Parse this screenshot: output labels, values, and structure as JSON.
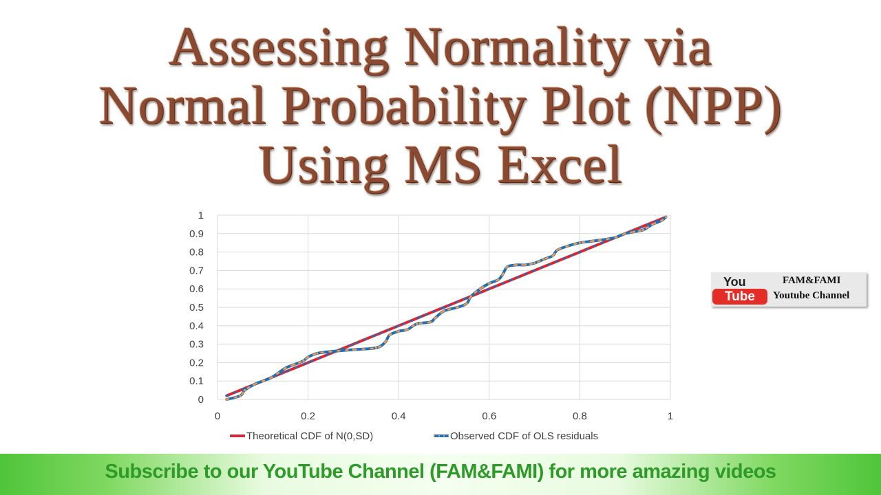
{
  "title_lines": [
    "Assessing Normality via",
    "Normal Probability Plot (NPP)",
    "Using MS Excel"
  ],
  "badge": {
    "you": "You",
    "tube": "Tube",
    "name": "FAM&FAMI",
    "channel": "Youtube Channel"
  },
  "banner": {
    "text": "Subscribe to our YouTube Channel (FAM&FAMI) for more amazing videos"
  },
  "colors": {
    "theoretical": "#e8202a",
    "observed": "#1f6fb4",
    "marker": "#ed9a52",
    "title": "#8a4a32",
    "banner_text": "#2e9b28"
  },
  "chart_data": {
    "type": "line",
    "title": "",
    "xlabel": "",
    "ylabel": "",
    "xlim": [
      0,
      1
    ],
    "ylim": [
      0,
      1
    ],
    "x_ticks": [
      "0",
      "0.2",
      "0.4",
      "0.6",
      "0.8",
      "1"
    ],
    "y_ticks": [
      "0",
      "0.1",
      "0.2",
      "0.3",
      "0.4",
      "0.5",
      "0.6",
      "0.7",
      "0.8",
      "0.9",
      "1"
    ],
    "grid": true,
    "legend_position": "bottom",
    "series": [
      {
        "name": "Theoretical CDF of N(0,SD)",
        "x": [
          0.02,
          0.06,
          0.1,
          0.15,
          0.2,
          0.25,
          0.3,
          0.35,
          0.4,
          0.45,
          0.5,
          0.55,
          0.6,
          0.65,
          0.7,
          0.75,
          0.8,
          0.85,
          0.9,
          0.95,
          0.99
        ],
        "y": [
          0.02,
          0.06,
          0.1,
          0.15,
          0.2,
          0.25,
          0.3,
          0.35,
          0.4,
          0.45,
          0.5,
          0.55,
          0.6,
          0.65,
          0.7,
          0.75,
          0.8,
          0.85,
          0.9,
          0.95,
          0.99
        ]
      },
      {
        "name": "Observed CDF of OLS residuals",
        "x": [
          0.02,
          0.05,
          0.06,
          0.08,
          0.1,
          0.12,
          0.15,
          0.17,
          0.19,
          0.2,
          0.22,
          0.25,
          0.3,
          0.35,
          0.37,
          0.38,
          0.4,
          0.42,
          0.44,
          0.47,
          0.48,
          0.5,
          0.53,
          0.55,
          0.56,
          0.58,
          0.6,
          0.62,
          0.63,
          0.64,
          0.66,
          0.68,
          0.7,
          0.72,
          0.74,
          0.75,
          0.77,
          0.8,
          0.83,
          0.86,
          0.88,
          0.9,
          0.92,
          0.94,
          0.96,
          0.98,
          0.99
        ],
        "y": [
          0.0,
          0.02,
          0.05,
          0.08,
          0.1,
          0.12,
          0.17,
          0.19,
          0.21,
          0.23,
          0.25,
          0.26,
          0.27,
          0.28,
          0.31,
          0.35,
          0.37,
          0.38,
          0.41,
          0.42,
          0.44,
          0.48,
          0.5,
          0.52,
          0.56,
          0.6,
          0.63,
          0.65,
          0.68,
          0.72,
          0.73,
          0.73,
          0.74,
          0.76,
          0.78,
          0.81,
          0.83,
          0.85,
          0.86,
          0.87,
          0.88,
          0.9,
          0.91,
          0.92,
          0.95,
          0.97,
          0.99
        ]
      }
    ]
  }
}
